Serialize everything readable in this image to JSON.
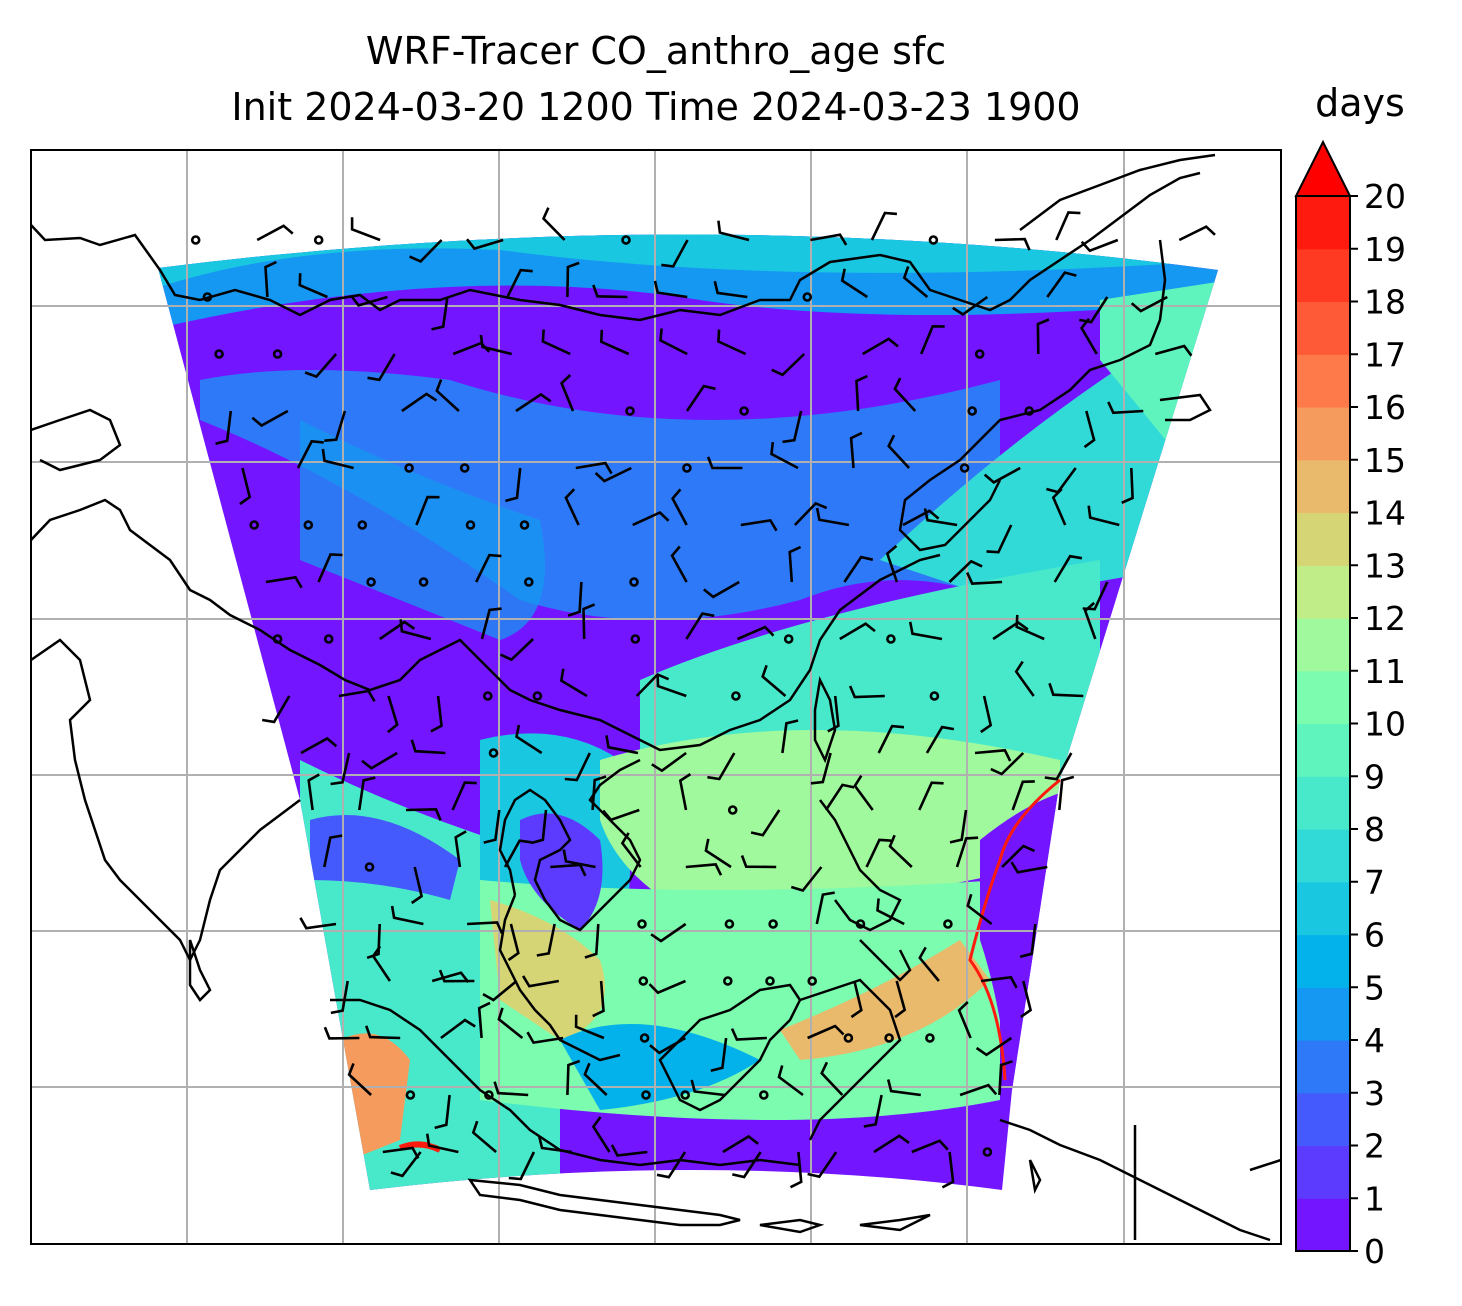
{
  "title_line1": "WRF-Tracer CO_anthro_age sfc",
  "title_line2": "Init 2024-03-20 1200 Time 2024-03-23 1900",
  "colorbar": {
    "unit": "days",
    "extend": "max",
    "ticks": [
      "0",
      "1",
      "2",
      "3",
      "4",
      "5",
      "6",
      "7",
      "8",
      "9",
      "10",
      "11",
      "12",
      "13",
      "14",
      "15",
      "16",
      "17",
      "18",
      "19",
      "20"
    ],
    "colors": [
      "#7316ff",
      "#5c3bfe",
      "#455afc",
      "#2e79f8",
      "#1598f2",
      "#03b2ea",
      "#1ac7e1",
      "#31dad7",
      "#48e9cb",
      "#5ff4be",
      "#7cfcaf",
      "#a1f99d",
      "#c0ed88",
      "#d6d575",
      "#e9b96c",
      "#f59b5e",
      "#ff7a4a",
      "#ff5a37",
      "#ff3a22",
      "#ff1a10"
    ],
    "over_color": "#ff0000"
  },
  "map": {
    "gridlines": "on",
    "gridline_color": "#b0b0b0",
    "coastline_color": "#000000",
    "wind_symbols": "barbs"
  }
}
